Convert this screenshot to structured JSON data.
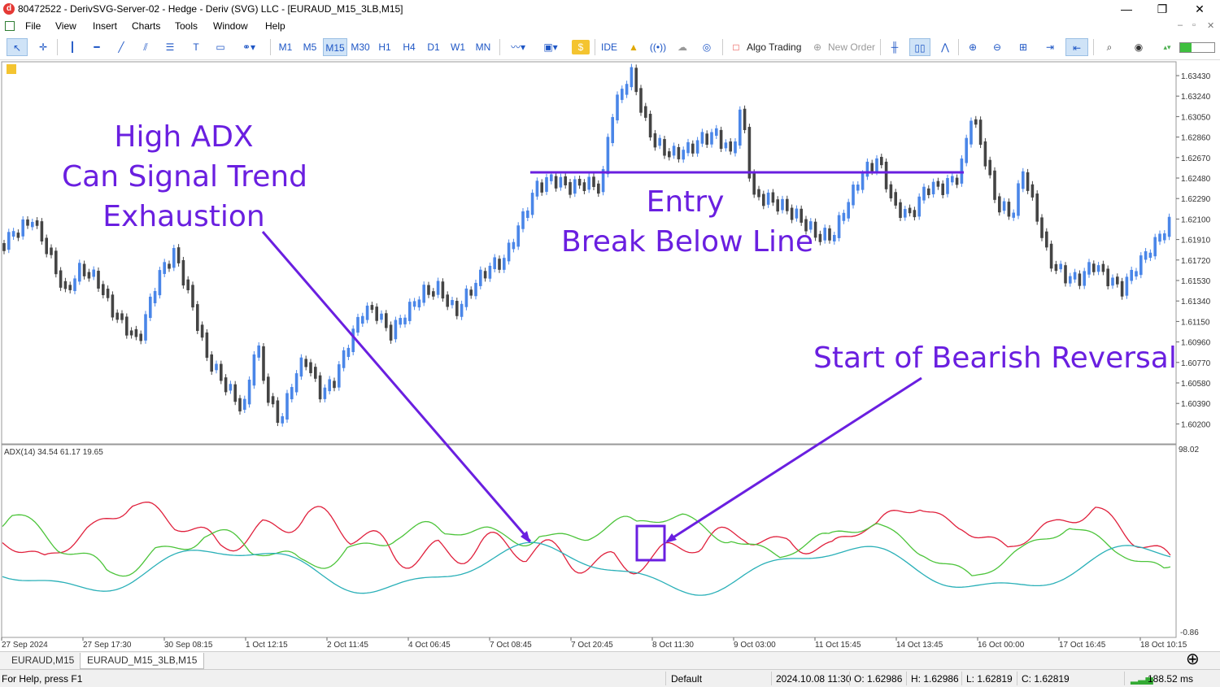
{
  "window": {
    "title": "80472522 - DerivSVG-Server-02 - Hedge - Deriv (SVG) LLC - [EURAUD_M15_3LB,M15]",
    "minimize": "—",
    "maximize": "❐",
    "close": "✕"
  },
  "menu": {
    "items": [
      "File",
      "View",
      "Insert",
      "Charts",
      "Tools",
      "Window",
      "Help"
    ],
    "right_controls": [
      "–",
      "▫",
      "✕"
    ]
  },
  "toolbar": {
    "timeframes": [
      "M1",
      "M5",
      "M15",
      "M30",
      "H1",
      "H4",
      "D1",
      "W1",
      "MN"
    ],
    "active_timeframe": "M15",
    "ide_label": "IDE",
    "algo_trading_label": "Algo Trading",
    "new_order_label": "New Order"
  },
  "chart": {
    "symbol": "EURAUD_M15_3LB,M15",
    "price_axis": [
      "1.63430",
      "1.63240",
      "1.63050",
      "1.62860",
      "1.62670",
      "1.62480",
      "1.62290",
      "1.62100",
      "1.61910",
      "1.61720",
      "1.61530",
      "1.61340",
      "1.61150",
      "1.60960",
      "1.60770",
      "1.60580",
      "1.60390",
      "1.60200"
    ],
    "indicator_label": "ADX(14) 34.54 61.17 19.65",
    "indicator_axis_top": "98.02",
    "indicator_axis_bottom": "-0.86",
    "time_axis": [
      "27 Sep 2024",
      "27 Sep 17:30",
      "30 Sep 08:15",
      "1 Oct 12:15",
      "2 Oct 11:45",
      "4 Oct 06:45",
      "7 Oct 08:45",
      "7 Oct 20:45",
      "8 Oct 11:30",
      "9 Oct 03:00",
      "11 Oct 15:45",
      "14 Oct 13:45",
      "16 Oct 00:00",
      "17 Oct 16:45",
      "18 Oct 10:15"
    ],
    "colors": {
      "bull": "#4a86e8",
      "bear": "#444444",
      "adx": "#2ab0b8",
      "plus_di": "#4cc43a",
      "minus_di": "#e0203c",
      "annotation": "#6a1fe0"
    }
  },
  "annotations": {
    "high_adx": [
      "High ADX",
      "Can Signal Trend",
      "Exhaustion"
    ],
    "entry": [
      "Entry",
      "Break Below Line"
    ],
    "reversal": "Start of Bearish Reversal"
  },
  "tabs": [
    "EURAUD,M15",
    "EURAUD_M15_3LB,M15"
  ],
  "active_tab": "EURAUD_M15_3LB,M15",
  "status": {
    "help": "For Help, press F1",
    "profile": "Default",
    "datetime": "2024.10.08 11:30",
    "open": "O: 1.62986",
    "high": "H: 1.62986",
    "low": "L: 1.62819",
    "close": "C: 1.62819",
    "ping": "188.52 ms"
  }
}
